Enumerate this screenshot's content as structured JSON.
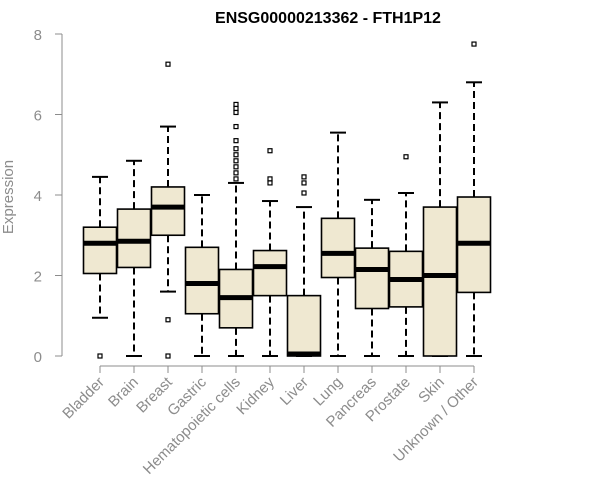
{
  "chart_data": {
    "type": "boxplot",
    "title": "ENSG00000213362 - FTH1P12",
    "xlabel": "",
    "ylabel": "Expression",
    "ylim": [
      0,
      8
    ],
    "yticks": [
      0,
      2,
      4,
      6,
      8
    ],
    "categories": [
      "Bladder",
      "Brain",
      "Breast",
      "Gastric",
      "Hematopoietic cells",
      "Kidney",
      "Liver",
      "Lung",
      "Pancreas",
      "Prostate",
      "Skin",
      "Unknown / Other"
    ],
    "series": [
      {
        "name": "Bladder",
        "whisker_low": 0.95,
        "q1": 2.05,
        "median": 2.8,
        "q3": 3.2,
        "whisker_high": 4.45,
        "outliers": [
          0.0
        ]
      },
      {
        "name": "Brain",
        "whisker_low": 0.0,
        "q1": 2.2,
        "median": 2.85,
        "q3": 3.65,
        "whisker_high": 4.85,
        "outliers": []
      },
      {
        "name": "Breast",
        "whisker_low": 1.6,
        "q1": 3.0,
        "median": 3.7,
        "q3": 4.2,
        "whisker_high": 5.7,
        "outliers": [
          7.25,
          0.9,
          0.0
        ]
      },
      {
        "name": "Gastric",
        "whisker_low": 0.0,
        "q1": 1.05,
        "median": 1.8,
        "q3": 2.7,
        "whisker_high": 4.0,
        "outliers": []
      },
      {
        "name": "Hematopoietic cells",
        "whisker_low": 0.0,
        "q1": 0.7,
        "median": 1.45,
        "q3": 2.15,
        "whisker_high": 4.3,
        "outliers": [
          6.25,
          6.15,
          6.05,
          5.7,
          5.35,
          5.15,
          5.0,
          4.85,
          4.7,
          4.55,
          4.4
        ]
      },
      {
        "name": "Kidney",
        "whisker_low": 0.0,
        "q1": 1.5,
        "median": 2.22,
        "q3": 2.62,
        "whisker_high": 3.85,
        "outliers": [
          5.1,
          4.4,
          4.3
        ]
      },
      {
        "name": "Liver",
        "whisker_low": 0.0,
        "q1": 0.0,
        "median": 0.05,
        "q3": 1.5,
        "whisker_high": 3.7,
        "outliers": [
          4.45,
          4.3,
          4.05
        ]
      },
      {
        "name": "Lung",
        "whisker_low": 0.0,
        "q1": 1.95,
        "median": 2.55,
        "q3": 3.42,
        "whisker_high": 5.55,
        "outliers": []
      },
      {
        "name": "Pancreas",
        "whisker_low": 0.0,
        "q1": 1.18,
        "median": 2.15,
        "q3": 2.68,
        "whisker_high": 3.88,
        "outliers": []
      },
      {
        "name": "Prostate",
        "whisker_low": 0.0,
        "q1": 1.22,
        "median": 1.9,
        "q3": 2.6,
        "whisker_high": 4.05,
        "outliers": [
          4.95
        ]
      },
      {
        "name": "Skin",
        "whisker_low": 0.0,
        "q1": 0.0,
        "median": 2.0,
        "q3": 3.7,
        "whisker_high": 6.3,
        "outliers": []
      },
      {
        "name": "Unknown / Other",
        "whisker_low": 0.0,
        "q1": 1.58,
        "median": 2.8,
        "q3": 3.95,
        "whisker_high": 6.8,
        "outliers": [
          7.75
        ]
      }
    ]
  },
  "colors": {
    "box_fill": "#efe8d1",
    "box_stroke": "#000000",
    "axis": "#8c8c8c",
    "background": "#ffffff"
  }
}
